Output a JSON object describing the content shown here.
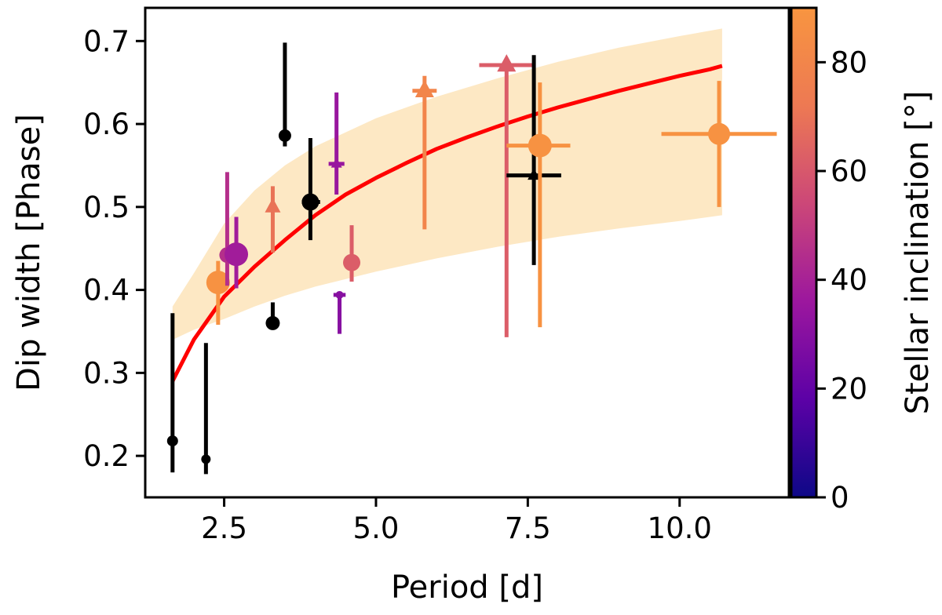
{
  "chart_data": {
    "type": "scatter",
    "xlabel": "Period [d]",
    "ylabel": "Dip width [Phase]",
    "xlim": [
      1.2,
      11.8
    ],
    "ylim": [
      0.15,
      0.74
    ],
    "x_ticks": [
      2.5,
      5.0,
      7.5,
      10.0
    ],
    "y_ticks": [
      0.2,
      0.3,
      0.4,
      0.5,
      0.6,
      0.7
    ],
    "grid": false,
    "colorbar": {
      "label": "Stellar inclination [°]",
      "range": [
        0,
        90
      ],
      "ticks": [
        0,
        20,
        40,
        60,
        80
      ],
      "colormap": "plasma",
      "colormap_stops": [
        "#0d0887",
        "#5c01a6",
        "#9c179e",
        "#cc4778",
        "#ed7953",
        "#f89540"
      ]
    },
    "fit_curve": {
      "color": "#ff0000",
      "x": [
        1.65,
        2.0,
        2.5,
        3.0,
        3.5,
        4.0,
        4.5,
        5.0,
        5.5,
        6.0,
        6.5,
        7.0,
        7.5,
        8.0,
        8.5,
        9.0,
        9.5,
        10.0,
        10.5,
        10.7
      ],
      "y": [
        0.29,
        0.34,
        0.392,
        0.428,
        0.46,
        0.49,
        0.515,
        0.535,
        0.553,
        0.57,
        0.584,
        0.597,
        0.609,
        0.62,
        0.63,
        0.64,
        0.649,
        0.658,
        0.666,
        0.67
      ]
    },
    "uncertainty_band": {
      "color": "#fde8c4",
      "x": [
        1.65,
        2.0,
        2.5,
        3.0,
        3.5,
        4.0,
        5.0,
        6.0,
        7.0,
        8.0,
        9.0,
        10.0,
        10.7
      ],
      "lower": [
        0.34,
        0.352,
        0.365,
        0.38,
        0.393,
        0.404,
        0.422,
        0.438,
        0.452,
        0.464,
        0.474,
        0.483,
        0.49
      ],
      "upper": [
        0.38,
        0.42,
        0.48,
        0.52,
        0.55,
        0.573,
        0.607,
        0.633,
        0.655,
        0.675,
        0.692,
        0.706,
        0.715
      ]
    },
    "points": [
      {
        "x": 1.65,
        "y": 0.218,
        "marker": "circle",
        "size": 7,
        "inclination": null,
        "yerr_low": 0.18,
        "yerr_high": 0.372
      },
      {
        "x": 2.2,
        "y": 0.196,
        "marker": "circle",
        "size": 6,
        "inclination": null,
        "yerr_low": 0.178,
        "yerr_high": 0.336
      },
      {
        "x": 2.4,
        "y": 0.409,
        "marker": "circle",
        "size": 15,
        "inclination": 88,
        "yerr_low": 0.358,
        "yerr_high": 0.435
      },
      {
        "x": 2.55,
        "y": 0.442,
        "marker": "circle",
        "size": 10,
        "inclination": 45,
        "yerr_low": 0.405,
        "yerr_high": 0.542
      },
      {
        "x": 2.7,
        "y": 0.443,
        "marker": "circle",
        "size": 15,
        "inclination": 38,
        "yerr_low": 0.402,
        "yerr_high": 0.488
      },
      {
        "x": 3.3,
        "y": 0.36,
        "marker": "circle",
        "size": 9,
        "inclination": null,
        "yerr_low": 0.358,
        "yerr_high": 0.385
      },
      {
        "x": 3.3,
        "y": 0.5,
        "marker": "triangle",
        "size": 10,
        "inclination": 70,
        "yerr_low": 0.445,
        "yerr_high": 0.525
      },
      {
        "x": 3.5,
        "y": 0.586,
        "marker": "circle",
        "size": 8,
        "inclination": null,
        "yerr_low": 0.573,
        "yerr_high": 0.698
      },
      {
        "x": 3.92,
        "y": 0.506,
        "marker": "circle",
        "size": 11,
        "inclination": null,
        "yerr_low": 0.46,
        "yerr_high": 0.583,
        "xerr_low": 3.78,
        "xerr_high": 4.08
      },
      {
        "x": 4.35,
        "y": 0.552,
        "marker": "triangle",
        "size": 7,
        "inclination": 35,
        "yerr_low": 0.515,
        "yerr_high": 0.638,
        "xerr_low": 4.22,
        "xerr_high": 4.48
      },
      {
        "x": 4.4,
        "y": 0.394,
        "marker": "circle",
        "size": 5,
        "inclination": 30,
        "yerr_low": 0.347,
        "yerr_high": 0.398,
        "xerr_low": 4.3,
        "xerr_high": 4.5
      },
      {
        "x": 4.6,
        "y": 0.433,
        "marker": "circle",
        "size": 11,
        "inclination": 62,
        "yerr_low": 0.41,
        "yerr_high": 0.478
      },
      {
        "x": 5.8,
        "y": 0.64,
        "marker": "triangle",
        "size": 12,
        "inclination": 80,
        "yerr_low": 0.473,
        "yerr_high": 0.658,
        "xerr_low": 5.6,
        "xerr_high": 6.0
      },
      {
        "x": 7.15,
        "y": 0.671,
        "marker": "triangle",
        "size": 12,
        "inclination": 62,
        "yerr_low": 0.343,
        "yerr_high": 0.671,
        "xerr_low": 6.7,
        "xerr_high": 7.6
      },
      {
        "x": 7.6,
        "y": 0.538,
        "marker": "triangle",
        "size": 8,
        "inclination": null,
        "yerr_low": 0.43,
        "yerr_high": 0.683,
        "xerr_low": 7.15,
        "xerr_high": 8.05
      },
      {
        "x": 7.7,
        "y": 0.574,
        "marker": "circle",
        "size": 15,
        "inclination": 88,
        "yerr_low": 0.355,
        "yerr_high": 0.65,
        "xerr_low": 7.15,
        "xerr_high": 8.2
      },
      {
        "x": 10.65,
        "y": 0.588,
        "marker": "circle",
        "size": 14,
        "inclination": 88,
        "yerr_low": 0.5,
        "yerr_high": 0.652,
        "xerr_low": 9.7,
        "xerr_high": 11.6
      }
    ]
  }
}
